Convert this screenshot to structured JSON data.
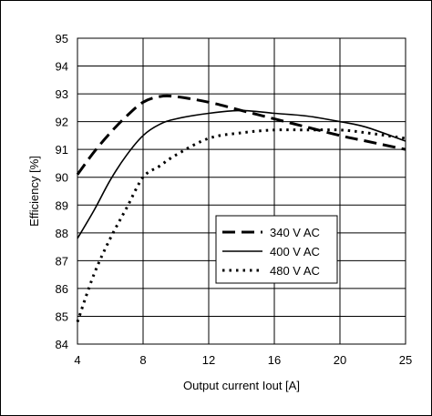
{
  "chart_data": {
    "type": "line",
    "title": "",
    "xlabel": "Output current Iout [A]",
    "ylabel": "Efficiency [%]",
    "x_ticks": [
      "4",
      "8",
      "12",
      "16",
      "20",
      "25"
    ],
    "y_ticks": [
      "84",
      "85",
      "86",
      "87",
      "88",
      "89",
      "90",
      "91",
      "92",
      "93",
      "94",
      "95"
    ],
    "xlim": [
      4,
      25
    ],
    "ylim": [
      84,
      95
    ],
    "grid": true,
    "legend_position": "lower-right",
    "series": [
      {
        "name": "340 V AC",
        "style": "dashed",
        "color": "#000000",
        "x": [
          4,
          5,
          6,
          7,
          8,
          9,
          10,
          12,
          14,
          16,
          18,
          20,
          22,
          25
        ],
        "y": [
          90.1,
          90.9,
          91.6,
          92.2,
          92.7,
          92.9,
          92.9,
          92.7,
          92.4,
          92.1,
          91.8,
          91.5,
          91.3,
          91.0
        ]
      },
      {
        "name": "400 V AC",
        "style": "solid",
        "color": "#000000",
        "x": [
          4,
          5,
          6,
          7,
          8,
          9,
          10,
          12,
          14,
          16,
          18,
          20,
          22,
          25
        ],
        "y": [
          87.8,
          88.8,
          89.9,
          90.8,
          91.5,
          91.9,
          92.1,
          92.3,
          92.4,
          92.3,
          92.2,
          92.0,
          91.8,
          91.3
        ]
      },
      {
        "name": "480 V AC",
        "style": "dotted",
        "color": "#000000",
        "x": [
          4,
          5,
          6,
          7,
          8,
          9,
          10,
          12,
          14,
          16,
          18,
          20,
          22,
          25
        ],
        "y": [
          84.8,
          86.5,
          87.8,
          88.9,
          90.0,
          90.4,
          90.8,
          91.4,
          91.6,
          91.7,
          91.7,
          91.7,
          91.6,
          91.4
        ]
      }
    ]
  }
}
